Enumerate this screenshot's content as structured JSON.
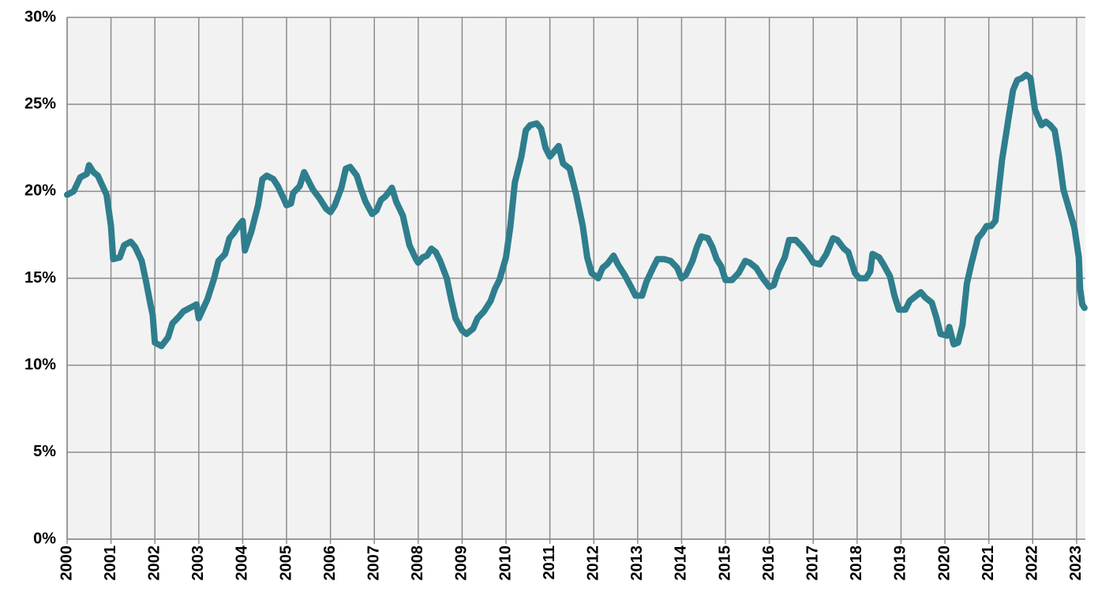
{
  "chart_data": {
    "type": "line",
    "color": "#2f7e8d",
    "grid": true,
    "xlim": [
      2000,
      2023.2
    ],
    "xticks": [
      2000,
      2001,
      2002,
      2003,
      2004,
      2005,
      2006,
      2007,
      2008,
      2009,
      2010,
      2011,
      2012,
      2013,
      2014,
      2015,
      2016,
      2017,
      2018,
      2019,
      2020,
      2021,
      2022,
      2023
    ],
    "ylim": [
      0,
      30
    ],
    "yticks": [
      {
        "value": 0,
        "label": "0%"
      },
      {
        "value": 5,
        "label": "5%"
      },
      {
        "value": 10,
        "label": "10%"
      },
      {
        "value": 15,
        "label": "15%"
      },
      {
        "value": 20,
        "label": "20%"
      },
      {
        "value": 25,
        "label": "25%"
      },
      {
        "value": 30,
        "label": "30%"
      }
    ],
    "x": [
      2000.0,
      2000.15,
      2000.3,
      2000.45,
      2000.5,
      2000.6,
      2000.7,
      2000.9,
      2001.0,
      2001.05,
      2001.2,
      2001.3,
      2001.45,
      2001.55,
      2001.7,
      2001.8,
      2001.9,
      2001.95,
      2002.0,
      2002.15,
      2002.3,
      2002.4,
      2002.55,
      2002.65,
      2002.8,
      2002.95,
      2003.0,
      2003.2,
      2003.35,
      2003.45,
      2003.6,
      2003.7,
      2003.8,
      2003.9,
      2004.0,
      2004.05,
      2004.2,
      2004.35,
      2004.45,
      2004.55,
      2004.7,
      2004.8,
      2004.95,
      2005.0,
      2005.1,
      2005.15,
      2005.3,
      2005.4,
      2005.5,
      2005.6,
      2005.75,
      2005.9,
      2006.0,
      2006.1,
      2006.25,
      2006.35,
      2006.45,
      2006.6,
      2006.7,
      2006.8,
      2006.95,
      2007.05,
      2007.15,
      2007.25,
      2007.4,
      2007.5,
      2007.65,
      2007.8,
      2007.95,
      2008.0,
      2008.1,
      2008.2,
      2008.3,
      2008.4,
      2008.5,
      2008.65,
      2008.75,
      2008.85,
      2009.0,
      2009.1,
      2009.25,
      2009.35,
      2009.5,
      2009.65,
      2009.75,
      2009.85,
      2010.0,
      2010.1,
      2010.2,
      2010.35,
      2010.45,
      2010.55,
      2010.7,
      2010.8,
      2010.9,
      2011.0,
      2011.1,
      2011.2,
      2011.3,
      2011.45,
      2011.6,
      2011.75,
      2011.85,
      2011.95,
      2012.1,
      2012.2,
      2012.3,
      2012.45,
      2012.55,
      2012.7,
      2012.85,
      2012.95,
      2013.1,
      2013.2,
      2013.35,
      2013.45,
      2013.6,
      2013.75,
      2013.9,
      2014.0,
      2014.1,
      2014.25,
      2014.35,
      2014.45,
      2014.6,
      2014.7,
      2014.8,
      2014.9,
      2015.0,
      2015.15,
      2015.3,
      2015.45,
      2015.55,
      2015.7,
      2015.85,
      2016.0,
      2016.1,
      2016.2,
      2016.35,
      2016.45,
      2016.6,
      2016.75,
      2016.9,
      2017.0,
      2017.15,
      2017.3,
      2017.45,
      2017.55,
      2017.7,
      2017.8,
      2017.95,
      2018.05,
      2018.2,
      2018.3,
      2018.35,
      2018.5,
      2018.6,
      2018.75,
      2018.85,
      2018.95,
      2019.1,
      2019.2,
      2019.35,
      2019.45,
      2019.55,
      2019.7,
      2019.8,
      2019.9,
      2020.05,
      2020.1,
      2020.2,
      2020.3,
      2020.4,
      2020.5,
      2020.6,
      2020.75,
      2020.85,
      2020.95,
      2021.05,
      2021.15,
      2021.3,
      2021.45,
      2021.55,
      2021.65,
      2021.75,
      2021.85,
      2021.95,
      2022.05,
      2022.2,
      2022.3,
      2022.4,
      2022.5,
      2022.6,
      2022.7,
      2022.85,
      2022.95,
      2023.05,
      2023.08,
      2023.13,
      2023.18
    ],
    "values": [
      19.8,
      20.0,
      20.8,
      21.0,
      21.5,
      21.1,
      20.9,
      19.8,
      18.0,
      16.1,
      16.2,
      16.9,
      17.1,
      16.8,
      16.0,
      14.8,
      13.5,
      12.9,
      11.3,
      11.1,
      11.6,
      12.4,
      12.8,
      13.1,
      13.3,
      13.5,
      12.7,
      13.8,
      15.0,
      16.0,
      16.4,
      17.3,
      17.6,
      18.0,
      18.3,
      16.6,
      17.7,
      19.2,
      20.7,
      20.9,
      20.7,
      20.3,
      19.5,
      19.2,
      19.3,
      19.9,
      20.3,
      21.1,
      20.6,
      20.1,
      19.6,
      19.0,
      18.8,
      19.2,
      20.2,
      21.3,
      21.4,
      20.9,
      20.1,
      19.4,
      18.7,
      18.9,
      19.5,
      19.7,
      20.2,
      19.4,
      18.6,
      16.9,
      16.1,
      15.9,
      16.2,
      16.3,
      16.7,
      16.5,
      16.0,
      15.0,
      13.8,
      12.7,
      12.0,
      11.8,
      12.1,
      12.7,
      13.1,
      13.7,
      14.4,
      14.9,
      16.2,
      18.0,
      20.5,
      22.0,
      23.5,
      23.8,
      23.9,
      23.6,
      22.5,
      22.0,
      22.3,
      22.6,
      21.6,
      21.3,
      19.8,
      18.0,
      16.2,
      15.3,
      15.0,
      15.6,
      15.8,
      16.3,
      15.8,
      15.2,
      14.5,
      14.0,
      14.0,
      14.8,
      15.6,
      16.1,
      16.1,
      16.0,
      15.6,
      15.0,
      15.2,
      16.0,
      16.8,
      17.4,
      17.3,
      16.8,
      16.1,
      15.7,
      14.9,
      14.9,
      15.3,
      16.0,
      15.9,
      15.6,
      15.0,
      14.5,
      14.6,
      15.4,
      16.2,
      17.2,
      17.2,
      16.8,
      16.3,
      15.9,
      15.8,
      16.4,
      17.3,
      17.2,
      16.7,
      16.5,
      15.3,
      15.0,
      15.0,
      15.4,
      16.4,
      16.2,
      15.8,
      15.1,
      14.0,
      13.2,
      13.2,
      13.7,
      14.0,
      14.2,
      13.9,
      13.6,
      12.8,
      11.8,
      11.7,
      12.2,
      11.2,
      11.3,
      12.3,
      14.7,
      15.8,
      17.3,
      17.6,
      18.0,
      18.0,
      18.3,
      21.8,
      24.2,
      25.8,
      26.4,
      26.5,
      26.7,
      26.5,
      24.7,
      23.8,
      24.0,
      23.8,
      23.5,
      22.0,
      20.1,
      18.8,
      17.9,
      16.2,
      14.4,
      13.5,
      13.3
    ]
  }
}
